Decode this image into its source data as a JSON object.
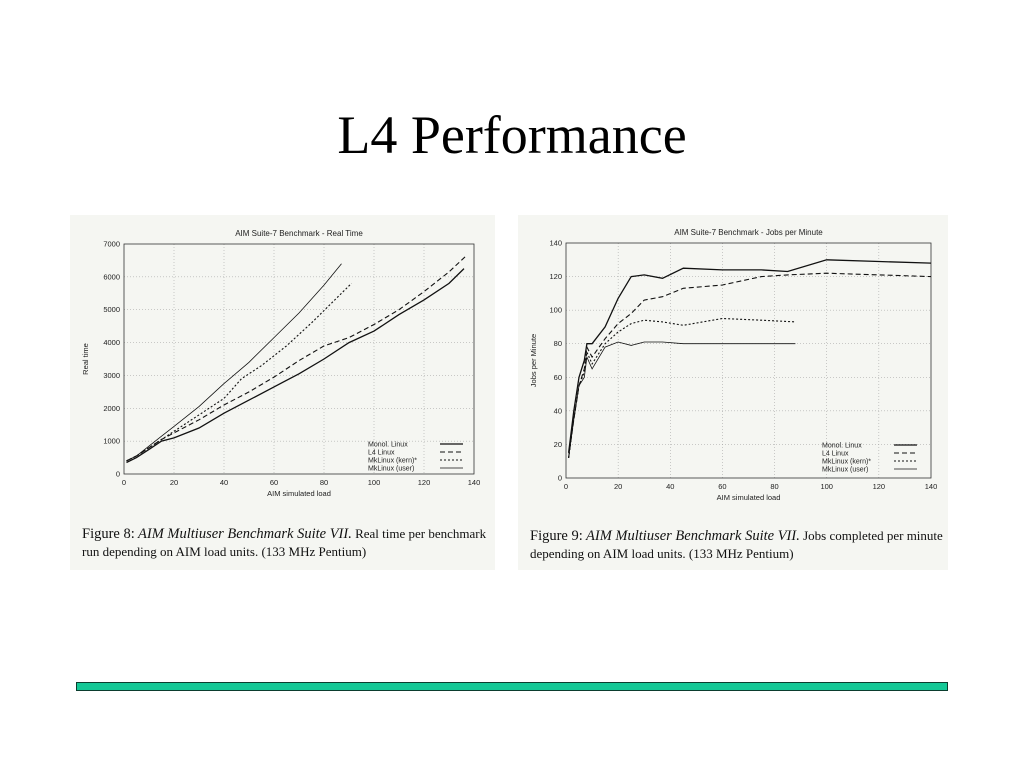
{
  "slide": {
    "title": "L4 Performance",
    "footer_bar_color": "#14c896"
  },
  "chart_data": [
    {
      "type": "line",
      "title": "AIM Suite-7 Benchmark - Real Time",
      "xlabel": "AIM simulated load",
      "ylabel": "Real time",
      "xlim": [
        0,
        140
      ],
      "ylim": [
        0,
        7000
      ],
      "xticks": [
        0,
        20,
        40,
        60,
        80,
        100,
        120,
        140
      ],
      "yticks": [
        0,
        1000,
        2000,
        3000,
        4000,
        5000,
        6000,
        7000
      ],
      "grid": true,
      "legend_position": "bottom-right",
      "series": [
        {
          "name": "Monol. Linux",
          "style": "solid",
          "x": [
            1,
            5,
            10,
            15,
            20,
            30,
            40,
            50,
            60,
            70,
            80,
            90,
            100,
            110,
            120,
            130,
            136
          ],
          "y": [
            350,
            500,
            750,
            1000,
            1100,
            1400,
            1850,
            2250,
            2650,
            3050,
            3500,
            4000,
            4350,
            4850,
            5300,
            5800,
            6250
          ]
        },
        {
          "name": "L4 Linux",
          "style": "dashed",
          "x": [
            1,
            5,
            10,
            15,
            20,
            30,
            40,
            50,
            60,
            70,
            80,
            90,
            100,
            110,
            120,
            130,
            137
          ],
          "y": [
            400,
            550,
            800,
            1050,
            1250,
            1650,
            2100,
            2500,
            2950,
            3450,
            3900,
            4150,
            4550,
            5000,
            5550,
            6150,
            6650
          ]
        },
        {
          "name": "MkLinux (kern)*",
          "style": "dotted",
          "x": [
            1,
            5,
            10,
            15,
            20,
            30,
            40,
            47,
            55,
            65,
            75,
            85,
            91
          ],
          "y": [
            400,
            550,
            800,
            1050,
            1300,
            1800,
            2300,
            2900,
            3300,
            3900,
            4600,
            5350,
            5800
          ]
        },
        {
          "name": "MkLinux (user)",
          "style": "solid-thin",
          "x": [
            1,
            5,
            10,
            15,
            20,
            30,
            40,
            50,
            60,
            70,
            80,
            87
          ],
          "y": [
            400,
            550,
            850,
            1150,
            1450,
            2050,
            2750,
            3400,
            4150,
            4900,
            5750,
            6400
          ]
        }
      ],
      "caption": {
        "lead": "Figure 8:",
        "emphasis": "AIM Multiuser Benchmark Suite VII.",
        "rest": "Real time per benchmark run depending on AIM load units. (133 MHz Pentium)"
      }
    },
    {
      "type": "line",
      "title": "AIM Suite-7 Benchmark - Jobs per Minute",
      "xlabel": "AIM simulated load",
      "ylabel": "Jobs per Minute",
      "xlim": [
        0,
        140
      ],
      "ylim": [
        0,
        140
      ],
      "xticks": [
        0,
        20,
        40,
        60,
        80,
        100,
        120,
        140
      ],
      "yticks": [
        0,
        20,
        40,
        60,
        80,
        100,
        120,
        140
      ],
      "grid": true,
      "legend_position": "bottom-right",
      "series": [
        {
          "name": "Monol. Linux",
          "style": "solid",
          "x": [
            1,
            3,
            5,
            7,
            8,
            10,
            15,
            20,
            25,
            30,
            37,
            45,
            60,
            75,
            85,
            100,
            120,
            140
          ],
          "y": [
            15,
            40,
            60,
            70,
            80,
            80,
            90,
            107,
            120,
            121,
            119,
            125,
            124,
            124,
            123,
            130,
            129,
            128
          ]
        },
        {
          "name": "L4 Linux",
          "style": "dashed",
          "x": [
            1,
            3,
            5,
            7,
            8,
            10,
            15,
            20,
            25,
            30,
            37,
            45,
            60,
            75,
            85,
            100,
            120,
            140
          ],
          "y": [
            12,
            35,
            55,
            65,
            78,
            72,
            83,
            92,
            98,
            106,
            108,
            113,
            115,
            120,
            121,
            122,
            121,
            120
          ]
        },
        {
          "name": "MkLinux (kern)*",
          "style": "dotted",
          "x": [
            1,
            3,
            5,
            7,
            8,
            10,
            15,
            20,
            25,
            30,
            37,
            45,
            60,
            75,
            88
          ],
          "y": [
            12,
            35,
            55,
            63,
            75,
            68,
            80,
            87,
            92,
            94,
            93,
            91,
            95,
            94,
            93
          ]
        },
        {
          "name": "MkLinux (user)",
          "style": "solid-thin",
          "x": [
            1,
            3,
            5,
            7,
            8,
            10,
            15,
            20,
            25,
            30,
            37,
            45,
            60,
            75,
            88
          ],
          "y": [
            12,
            35,
            55,
            60,
            72,
            65,
            78,
            81,
            79,
            81,
            81,
            80,
            80,
            80,
            80
          ]
        }
      ],
      "caption": {
        "lead": "Figure 9:",
        "emphasis": "AIM Multiuser Benchmark Suite VII.",
        "rest": "Jobs completed per minute depending on AIM load units. (133 MHz Pentium)"
      }
    }
  ]
}
